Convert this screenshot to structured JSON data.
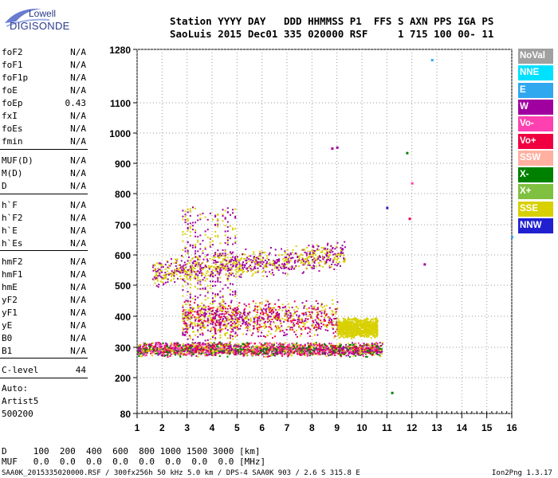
{
  "logo": {
    "line1": "Lowell",
    "line2": "DIGISONDE"
  },
  "header": {
    "line1": "Station YYYY DAY   DDD HHMMSS P1  FFS S AXN PPS IGA PS",
    "line2": "SaoLuis 2015 Dec01 335 020000 RSF     1 715 100 00- 11"
  },
  "params": [
    {
      "name": "foF2",
      "value": "N/A"
    },
    {
      "name": "foF1",
      "value": "N/A"
    },
    {
      "name": "foF1p",
      "value": "N/A"
    },
    {
      "name": "foE",
      "value": "N/A"
    },
    {
      "name": "foEp",
      "value": "0.43"
    },
    {
      "name": "fxI",
      "value": "N/A"
    },
    {
      "name": "foEs",
      "value": "N/A"
    },
    {
      "name": "fmin",
      "value": "N/A"
    },
    {
      "name": "MUF(D)",
      "value": "N/A"
    },
    {
      "name": "M(D)",
      "value": "N/A"
    },
    {
      "name": "D",
      "value": "N/A"
    },
    {
      "name": "h`F",
      "value": "N/A"
    },
    {
      "name": "h`F2",
      "value": "N/A"
    },
    {
      "name": "h`E",
      "value": "N/A"
    },
    {
      "name": "h`Es",
      "value": "N/A"
    },
    {
      "name": "hmF2",
      "value": "N/A"
    },
    {
      "name": "hmF1",
      "value": "N/A"
    },
    {
      "name": "hmE",
      "value": "N/A"
    },
    {
      "name": "yF2",
      "value": "N/A"
    },
    {
      "name": "yF1",
      "value": "N/A"
    },
    {
      "name": "yE",
      "value": "N/A"
    },
    {
      "name": "B0",
      "value": "N/A"
    },
    {
      "name": "B1",
      "value": "N/A"
    },
    {
      "name": "C-level",
      "value": "44"
    }
  ],
  "auto": {
    "line1": "Auto:",
    "line2": "Artist5",
    "line3": "500200"
  },
  "bottom": {
    "d_line": "D     100  200  400  600  800 1000 1500 3000 [km]",
    "muf_line": "MUF   0.0  0.0  0.0  0.0  0.0  0.0  0.0  0.0 [MHz]"
  },
  "footer": {
    "left": "SAA0K_2015335020000.RSF / 300fx256h 50 kHz 5.0 km / DPS-4 SAA0K 903 / 2.6 S 315.8 E",
    "right": "Ion2Png 1.3.17"
  },
  "legend": [
    {
      "label": "NoVal",
      "color": "#a0a0a0"
    },
    {
      "label": "NNE",
      "color": "#00e0ff"
    },
    {
      "label": "E",
      "color": "#30a8f0"
    },
    {
      "label": "W",
      "color": "#a000a0"
    },
    {
      "label": "Vo-",
      "color": "#ff40b0"
    },
    {
      "label": "Vo+",
      "color": "#f00040"
    },
    {
      "label": "SSW",
      "color": "#ffb0a0"
    },
    {
      "label": "X-",
      "color": "#008000"
    },
    {
      "label": "X+",
      "color": "#80c040"
    },
    {
      "label": "SSE",
      "color": "#d8d000"
    },
    {
      "label": "NNW",
      "color": "#2020d0"
    }
  ],
  "chart_data": {
    "type": "scatter",
    "title": "",
    "xlabel": "",
    "ylabel": "",
    "xlim": [
      1,
      16
    ],
    "ylim": [
      80,
      1280
    ],
    "x_ticks": [
      1,
      2,
      3,
      4,
      5,
      6,
      7,
      8,
      9,
      10,
      11,
      12,
      13,
      14,
      15,
      16
    ],
    "y_ticks": [
      80,
      200,
      300,
      400,
      500,
      600,
      700,
      800,
      900,
      1000,
      1100,
      1280
    ],
    "grid": true,
    "clusters": [
      {
        "name": "E-layer traces",
        "x_range": [
          1.0,
          10.8
        ],
        "y_range": [
          270,
          320
        ],
        "colors": [
          "#a000a0",
          "#f00040",
          "#d8d000",
          "#008000",
          "#ff40b0"
        ],
        "density": "high"
      },
      {
        "name": "F-layer spread",
        "x_range": [
          2.8,
          9.0
        ],
        "y_range": [
          330,
          460
        ],
        "colors": [
          "#a000a0",
          "#d8d000",
          "#f00040"
        ],
        "density": "medium"
      },
      {
        "name": "Second-hop band",
        "x_range": [
          1.6,
          9.3
        ],
        "y_range": [
          520,
          620
        ],
        "colors": [
          "#d8d000",
          "#a000a0"
        ],
        "density": "medium"
      },
      {
        "name": "Vertical streaks",
        "x_range": [
          2.8,
          5.0
        ],
        "y_range": [
          300,
          760
        ],
        "colors": [
          "#a000a0",
          "#d8d000"
        ],
        "density": "low"
      },
      {
        "name": "High-frequency trace",
        "x_range": [
          9.0,
          10.6
        ],
        "y_range": [
          330,
          400
        ],
        "colors": [
          "#d8d000"
        ],
        "density": "medium"
      }
    ],
    "points": [
      {
        "x": 8.8,
        "y": 950,
        "color": "#a000a0"
      },
      {
        "x": 9.0,
        "y": 953,
        "color": "#a000a0"
      },
      {
        "x": 11.8,
        "y": 935,
        "color": "#008000"
      },
      {
        "x": 11.9,
        "y": 720,
        "color": "#f00040"
      },
      {
        "x": 12.8,
        "y": 1245,
        "color": "#30a8f0"
      },
      {
        "x": 11.2,
        "y": 150,
        "color": "#008000"
      },
      {
        "x": 11.0,
        "y": 755,
        "color": "#2020d0"
      },
      {
        "x": 12.5,
        "y": 570,
        "color": "#a000a0"
      },
      {
        "x": 16.0,
        "y": 660,
        "color": "#30a8f0"
      },
      {
        "x": 12.0,
        "y": 835,
        "color": "#ff40b0"
      }
    ]
  }
}
